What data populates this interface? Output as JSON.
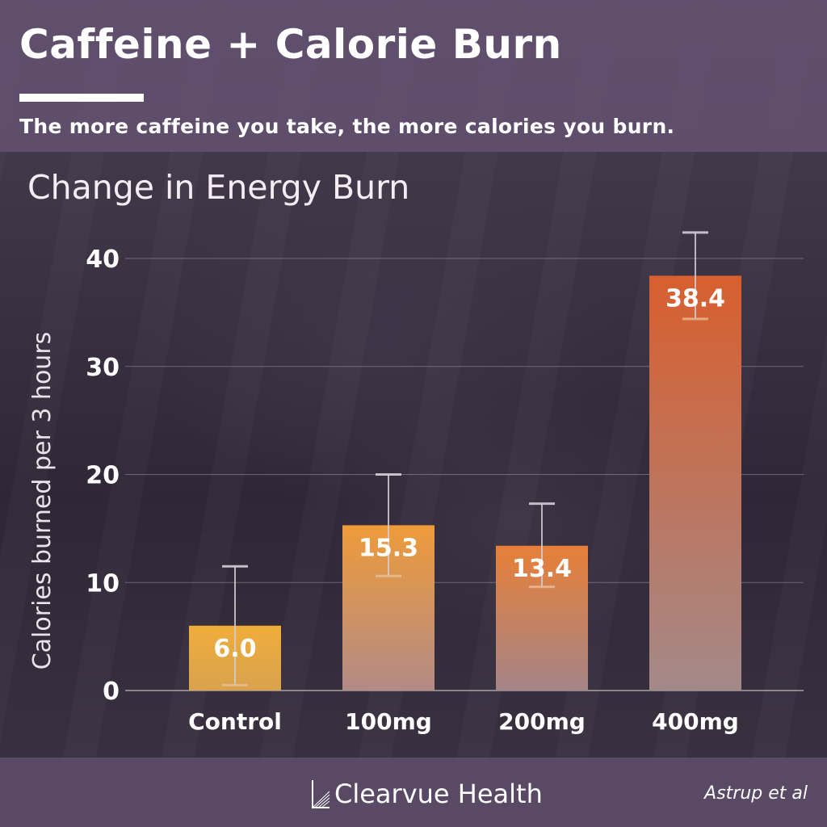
{
  "header": {
    "title": "Caffeine + Calorie Burn",
    "subtitle": "The more caffeine you take, the more calories you burn."
  },
  "chart_heading": "Change in Energy Burn",
  "chart_data": {
    "type": "bar",
    "title": "Change in Energy Burn",
    "xlabel": "",
    "ylabel": "Calories burned per 3 hours",
    "categories": [
      "Control",
      "100mg",
      "200mg",
      "400mg"
    ],
    "values": [
      6.0,
      15.3,
      13.4,
      38.4
    ],
    "value_labels": [
      "6.0",
      "15.3",
      "13.4",
      "38.4"
    ],
    "error_bars": [
      {
        "low": 0.5,
        "high": 11.5
      },
      {
        "low": 10.6,
        "high": 20.0
      },
      {
        "low": 9.6,
        "high": 17.3
      },
      {
        "low": 34.4,
        "high": 42.4
      }
    ],
    "ylim": [
      0,
      40
    ],
    "yticks": [
      0,
      10,
      20,
      30,
      40
    ],
    "grid": true,
    "bar_colors": [
      {
        "top": "#f0ad3a",
        "bottom": "#d9a24e"
      },
      {
        "top": "#ee9b3a",
        "bottom": "#b38a86"
      },
      {
        "top": "#e78038",
        "bottom": "#a58487"
      },
      {
        "top": "#d85f2e",
        "bottom": "#a48989"
      }
    ]
  },
  "footer": {
    "brand": "Clearvue Health",
    "citation": "Astrup et al"
  },
  "colors": {
    "header_bg": "#64527a",
    "footer_bg": "#5f4e6c",
    "text": "#ffffff"
  }
}
